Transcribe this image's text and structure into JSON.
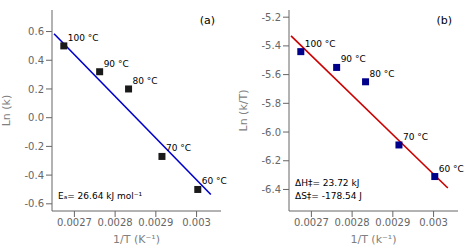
{
  "chart_data": [
    {
      "type": "scatter",
      "title": "(a)",
      "xlabel": "1/T (K⁻¹)",
      "ylabel": "Ln (k)",
      "annotations": [
        "Eₐ= 26.64 kJ mol⁻¹"
      ],
      "xlim": [
        0.002645,
        0.00306
      ],
      "ylim": [
        -0.65,
        0.75
      ],
      "xticks": [
        0.0027,
        0.0028,
        0.0029,
        0.003
      ],
      "yticks": [
        -0.6,
        -0.4,
        -0.2,
        {
          "value": 0,
          "label": "0.0"
        },
        0.2,
        0.4,
        0.6
      ],
      "series": [
        {
          "type": "line",
          "color": "#0000cc",
          "x": [
            0.00265,
            0.003035
          ],
          "values": [
            0.585,
            -0.535
          ]
        },
        {
          "type": "scatter",
          "marker": "square",
          "color": "#1a1a1a",
          "x": [
            0.002674,
            0.002762,
            0.002833,
            0.002915,
            0.003003
          ],
          "values": [
            0.5,
            0.32,
            0.2,
            -0.27,
            -0.5
          ],
          "labels": [
            "100 °C",
            "90 °C",
            "80 °C",
            "70 °C",
            "60 °C"
          ]
        }
      ]
    },
    {
      "type": "scatter",
      "title": "(b)",
      "xlabel": "1/T (k⁻¹)",
      "ylabel": "Ln (k/T)",
      "annotations": [
        "ΔH‡= 23.72 kJ",
        "ΔS‡= -178.54 J"
      ],
      "xlim": [
        0.002645,
        0.00306
      ],
      "ylim": [
        -6.55,
        -5.15
      ],
      "xticks": [
        0.0027,
        0.0028,
        0.0029,
        0.003
      ],
      "yticks": [
        -6.4,
        -6.2,
        {
          "value": -6,
          "label": "-6.0"
        },
        -5.8,
        -5.6,
        -5.4,
        -5.2
      ],
      "series": [
        {
          "type": "line",
          "color": "#cc0000",
          "x": [
            0.00265,
            0.003035
          ],
          "values": [
            -5.33,
            -6.39
          ]
        },
        {
          "type": "scatter",
          "marker": "square",
          "color": "#00008b",
          "x": [
            0.002674,
            0.002762,
            0.002833,
            0.002915,
            0.003003
          ],
          "values": [
            -5.44,
            -5.55,
            -5.65,
            -6.09,
            -6.31
          ],
          "labels": [
            "100 °C",
            "90 °C",
            "80 °C",
            "70 °C",
            "60 °C"
          ]
        }
      ]
    }
  ]
}
